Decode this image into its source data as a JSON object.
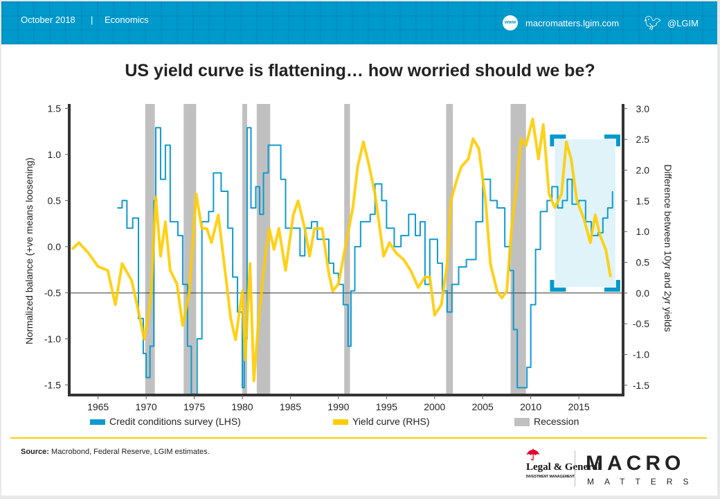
{
  "header": {
    "date": "October 2018",
    "separator": "|",
    "section": "Economics",
    "website_icon": "www-icon",
    "website": "macromatters.lgim.com",
    "twitter_icon": "twitter-bird-icon",
    "twitter": "@LGIM",
    "www_label": "www"
  },
  "footer": {
    "source_label": "Source:",
    "source_text": "Macrobond, Federal Reserve, LGIM estimates.",
    "logo1": "Legal & General",
    "logo1_sub": "INVESTMENT MANAGEMENT",
    "logo2_top": "MACRO",
    "logo2_bottom": "MATTERS"
  },
  "colors": {
    "brand": "#0099cc",
    "credit": "#0e9ad0",
    "yield": "#ffcc00",
    "recession": "#c0c0c0",
    "highlight": "#dff3f9",
    "rule": "#ffcc00"
  },
  "chart_data": {
    "type": "line",
    "title": "US yield curve is flattening… how worried should we be?",
    "ylabel": "Normalized balance (+ve means loosening)",
    "y2label": "Difference between 10yr and 2yr yields",
    "xlim": [
      1962,
      2019.6
    ],
    "ylim": [
      -1.61,
      1.51
    ],
    "y2lim": [
      -1.66,
      3.02
    ],
    "xticks": [
      "1965",
      "1970",
      "1975",
      "1980",
      "1985",
      "1990",
      "1995",
      "2000",
      "2005",
      "2010",
      "2015"
    ],
    "yticks": [
      "1.5",
      "1.0",
      "0.5",
      "0.0",
      "-0.5",
      "-1.0",
      "-1.5"
    ],
    "y2ticks": [
      "3.0",
      "2.5",
      "2.0",
      "1.5",
      "1.0",
      "0.5",
      "0.0",
      "-0.5",
      "-1.0",
      "-1.5"
    ],
    "grid": false,
    "legend_position": "bottom",
    "legend": [
      {
        "label": "Credit conditions survey (LHS)",
        "key": "credit"
      },
      {
        "label": "Yield curve (RHS)",
        "key": "yield"
      },
      {
        "label": "Recession",
        "key": "recession"
      }
    ],
    "recessions": [
      [
        1969.9,
        1970.9
      ],
      [
        1973.9,
        1975.2
      ],
      [
        1980.0,
        1980.5
      ],
      [
        1981.5,
        1982.9
      ],
      [
        1990.6,
        1991.2
      ],
      [
        2001.2,
        2001.9
      ],
      [
        2007.9,
        2009.5
      ]
    ],
    "highlight": {
      "x": [
        2012.5,
        2018.8
      ],
      "y2": [
        0.1,
        2.5
      ]
    },
    "zero_line_y2": 0,
    "series": [
      {
        "name": "Credit conditions survey (LHS)",
        "axis": "left",
        "points": [
          [
            1967,
            0.42
          ],
          [
            1967.5,
            0.5
          ],
          [
            1968,
            0.2
          ],
          [
            1968.6,
            0.31
          ],
          [
            1969,
            0.31
          ],
          [
            1969.2,
            -0.78
          ],
          [
            1969.7,
            -1.16
          ],
          [
            1970,
            -1.42
          ],
          [
            1970.4,
            -1.08
          ],
          [
            1970.8,
            0.5
          ],
          [
            1971,
            1.29
          ],
          [
            1971.5,
            0.73
          ],
          [
            1972,
            1.1
          ],
          [
            1972.5,
            0.27
          ],
          [
            1973.3,
            0.12
          ],
          [
            1973.8,
            -0.41
          ],
          [
            1974.3,
            -1.08
          ],
          [
            1974.7,
            -1.6
          ],
          [
            1975.3,
            -1.0
          ],
          [
            1975.8,
            0.27
          ],
          [
            1976.5,
            0.38
          ],
          [
            1977,
            0.8
          ],
          [
            1977.8,
            0.6
          ],
          [
            1978.5,
            0.2
          ],
          [
            1979,
            -0.33
          ],
          [
            1979.5,
            -0.71
          ],
          [
            1980,
            -1.53
          ],
          [
            1980.2,
            -1.0
          ],
          [
            1980.5,
            1.29
          ],
          [
            1980.9,
            0.42
          ],
          [
            1981.4,
            0.65
          ],
          [
            1981.8,
            0.35
          ],
          [
            1982.2,
            0.8
          ],
          [
            1982.7,
            1.1
          ],
          [
            1983.5,
            1.1
          ],
          [
            1984,
            0.73
          ],
          [
            1984.5,
            0.2
          ],
          [
            1985.3,
            0.2
          ],
          [
            1986,
            -0.1
          ],
          [
            1986.5,
            0.2
          ],
          [
            1987.2,
            0.27
          ],
          [
            1987.8,
            0.08
          ],
          [
            1988.5,
            0.08
          ],
          [
            1989,
            -0.18
          ],
          [
            1989.5,
            -0.29
          ],
          [
            1990,
            -0.41
          ],
          [
            1990.5,
            -0.63
          ],
          [
            1991,
            -1.08
          ],
          [
            1991.3,
            -0.48
          ],
          [
            1991.7,
            0.0
          ],
          [
            1992.3,
            0.27
          ],
          [
            1993.3,
            0.35
          ],
          [
            1993.8,
            0.68
          ],
          [
            1994.5,
            0.5
          ],
          [
            1995,
            0.2
          ],
          [
            1995.8,
            0.0
          ],
          [
            1996.5,
            0.12
          ],
          [
            1997.3,
            0.35
          ],
          [
            1998,
            0.12
          ],
          [
            1998.5,
            0.27
          ],
          [
            1999,
            -0.41
          ],
          [
            1999.5,
            0.08
          ],
          [
            2000.3,
            -0.18
          ],
          [
            2000.8,
            -0.48
          ],
          [
            2001.3,
            -0.71
          ],
          [
            2001.8,
            -0.41
          ],
          [
            2002.5,
            -0.22
          ],
          [
            2003.3,
            -0.14
          ],
          [
            2004.3,
            0.27
          ],
          [
            2005,
            0.73
          ],
          [
            2005.8,
            0.5
          ],
          [
            2006.5,
            0.42
          ],
          [
            2007.3,
            0.0
          ],
          [
            2007.8,
            -0.26
          ],
          [
            2008.2,
            -0.9
          ],
          [
            2008.6,
            -1.53
          ],
          [
            2009.2,
            -1.53
          ],
          [
            2009.6,
            -1.31
          ],
          [
            2010,
            -0.63
          ],
          [
            2010.5,
            -0.03
          ],
          [
            2011,
            0.38
          ],
          [
            2011.7,
            0.5
          ],
          [
            2012.2,
            0.65
          ],
          [
            2012.8,
            0.42
          ],
          [
            2013.3,
            0.5
          ],
          [
            2013.8,
            0.73
          ],
          [
            2014.3,
            0.46
          ],
          [
            2015,
            0.5
          ],
          [
            2015.7,
            0.27
          ],
          [
            2016.3,
            0.12
          ],
          [
            2017,
            0.15
          ],
          [
            2017.5,
            0.31
          ],
          [
            2018,
            0.42
          ],
          [
            2018.5,
            0.6
          ]
        ]
      },
      {
        "name": "Yield curve (RHS)",
        "axis": "right",
        "points": [
          [
            1962.3,
            0.71
          ],
          [
            1963,
            0.82
          ],
          [
            1964,
            0.65
          ],
          [
            1965,
            0.43
          ],
          [
            1966,
            0.37
          ],
          [
            1966.8,
            -0.19
          ],
          [
            1967.5,
            0.48
          ],
          [
            1968.5,
            0.2
          ],
          [
            1969.2,
            -0.3
          ],
          [
            1969.8,
            -0.75
          ],
          [
            1970.5,
            -0.08
          ],
          [
            1971,
            1.56
          ],
          [
            1971.5,
            0.6
          ],
          [
            1972,
            1.16
          ],
          [
            1972.5,
            0.37
          ],
          [
            1973.2,
            0.15
          ],
          [
            1973.8,
            -0.53
          ],
          [
            1974.5,
            0.03
          ],
          [
            1975.2,
            1.61
          ],
          [
            1975.8,
            1.05
          ],
          [
            1976.3,
            1.05
          ],
          [
            1976.8,
            0.82
          ],
          [
            1977.5,
            1.27
          ],
          [
            1978.2,
            0.37
          ],
          [
            1978.8,
            -0.42
          ],
          [
            1979.3,
            -0.76
          ],
          [
            1980,
            0.03
          ],
          [
            1980.3,
            -1.09
          ],
          [
            1980.8,
            0.48
          ],
          [
            1981.2,
            -1.43
          ],
          [
            1981.7,
            -0.42
          ],
          [
            1982.3,
            0.48
          ],
          [
            1982.8,
            1.05
          ],
          [
            1983.3,
            0.71
          ],
          [
            1983.8,
            1.05
          ],
          [
            1984.5,
            0.37
          ],
          [
            1985.3,
            1.27
          ],
          [
            1985.8,
            1.5
          ],
          [
            1986.5,
            1.05
          ],
          [
            1987,
            0.6
          ],
          [
            1987.5,
            1.05
          ],
          [
            1988.3,
            1.05
          ],
          [
            1989,
            0.32
          ],
          [
            1989.4,
            0.03
          ],
          [
            1990,
            0.15
          ],
          [
            1990.8,
            0.82
          ],
          [
            1991.5,
            1.39
          ],
          [
            1992,
            2.06
          ],
          [
            1992.6,
            2.46
          ],
          [
            1993.2,
            2.06
          ],
          [
            1993.8,
            1.61
          ],
          [
            1994.3,
            1.05
          ],
          [
            1994.7,
            0.6
          ],
          [
            1995.3,
            0.82
          ],
          [
            1996,
            0.65
          ],
          [
            1996.8,
            0.54
          ],
          [
            1997.5,
            0.37
          ],
          [
            1998.3,
            0.09
          ],
          [
            1999,
            0.26
          ],
          [
            1999.5,
            0.26
          ],
          [
            2000,
            -0.36
          ],
          [
            2000.7,
            -0.19
          ],
          [
            2001.3,
            0.48
          ],
          [
            2001.7,
            1.5
          ],
          [
            2002.3,
            1.84
          ],
          [
            2002.8,
            2.06
          ],
          [
            2003.5,
            2.18
          ],
          [
            2004,
            2.51
          ],
          [
            2004.6,
            2.35
          ],
          [
            2005.3,
            1.5
          ],
          [
            2005.8,
            0.48
          ],
          [
            2006.5,
            0.03
          ],
          [
            2007,
            -0.08
          ],
          [
            2007.5,
            0.03
          ],
          [
            2008,
            1.05
          ],
          [
            2008.5,
            1.72
          ],
          [
            2009,
            2.51
          ],
          [
            2009.5,
            2.4
          ],
          [
            2010.2,
            2.83
          ],
          [
            2010.8,
            2.18
          ],
          [
            2011.3,
            2.74
          ],
          [
            2011.9,
            1.61
          ],
          [
            2012.5,
            1.39
          ],
          [
            2013.2,
            1.61
          ],
          [
            2013.7,
            2.46
          ],
          [
            2014.2,
            2.18
          ],
          [
            2014.8,
            1.5
          ],
          [
            2015.5,
            1.22
          ],
          [
            2016.2,
            0.82
          ],
          [
            2016.7,
            1.27
          ],
          [
            2017.2,
            0.94
          ],
          [
            2017.8,
            0.71
          ],
          [
            2018.3,
            0.26
          ]
        ]
      }
    ]
  }
}
